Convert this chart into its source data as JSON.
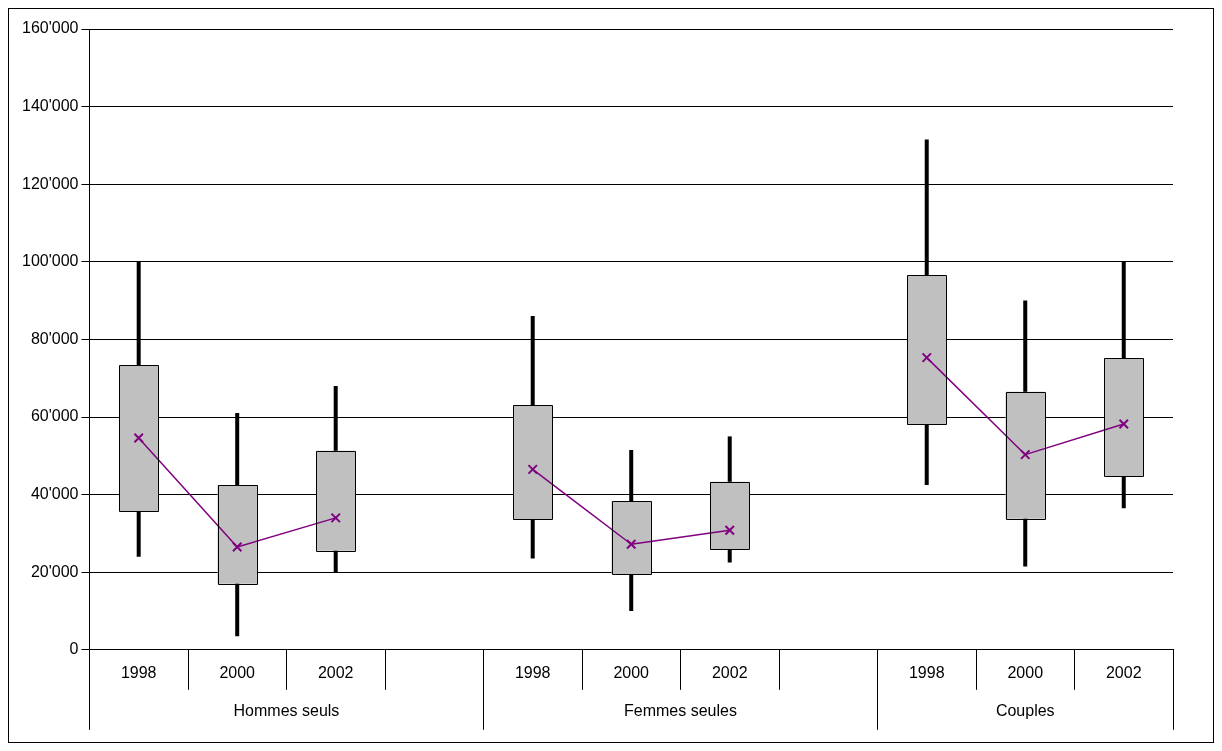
{
  "chart_data": {
    "type": "candlestick",
    "categories": [
      "1998",
      "2000",
      "2002",
      null,
      "1998",
      "2000",
      "2002",
      null,
      "1998",
      "2000",
      "2002"
    ],
    "color": "#c0c0c0",
    "ohlc": [
      [
        35700,
        100000,
        24000,
        73300
      ],
      [
        17000,
        61000,
        3500,
        42500
      ],
      [
        25500,
        68000,
        20000,
        51300
      ],
      null,
      [
        33700,
        86000,
        23500,
        63000
      ],
      [
        19500,
        51500,
        10000,
        38300
      ],
      [
        26000,
        55000,
        22500,
        43300
      ],
      null,
      [
        58000,
        131500,
        42500,
        96500
      ],
      [
        33800,
        90000,
        21500,
        66500
      ],
      [
        44800,
        100000,
        36500,
        75200
      ]
    ],
    "series": [
      {
        "type": "line",
        "color": "#800080",
        "marker": "cross",
        "values": [
          54600,
          26500,
          34000,
          null,
          46500,
          27200,
          30800,
          null,
          75300,
          50300,
          58200
        ]
      }
    ],
    "ylim": [
      0,
      160000
    ],
    "yticks": [
      0,
      {
        "value": 20000,
        "label": "20'000"
      },
      {
        "value": 40000,
        "label": "40'000"
      },
      {
        "value": 60000,
        "label": "60'000"
      },
      {
        "value": 80000,
        "label": "80'000"
      },
      {
        "value": 100000,
        "label": "100'000"
      },
      {
        "value": 120000,
        "label": "120'000"
      },
      {
        "value": 140000,
        "label": "140'000"
      },
      {
        "value": 160000,
        "label": "160'000"
      }
    ],
    "grid": "y",
    "legend": false,
    "annotations": [
      "Hommes seuls",
      "Femmes seules",
      "Couples"
    ]
  }
}
